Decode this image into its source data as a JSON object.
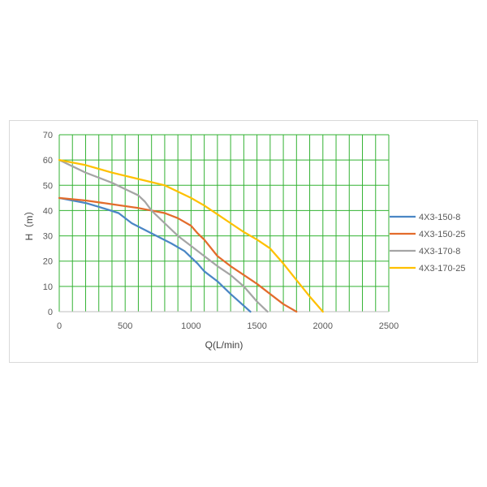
{
  "chart_data": {
    "type": "line",
    "xlabel": "Q(L/min)",
    "ylabel": "H（m）",
    "xlim": [
      0,
      2500
    ],
    "ylim": [
      0,
      70
    ],
    "x_ticks": [
      0,
      500,
      1000,
      1500,
      2000,
      2500
    ],
    "y_ticks": [
      0,
      10,
      20,
      30,
      40,
      50,
      60,
      70
    ],
    "x_minor_step": 100,
    "grid": true,
    "grid_color": "#33b233",
    "legend_position": "right",
    "series": [
      {
        "name": "4X3-150-8",
        "color": "#4a86c5",
        "x": [
          0,
          200,
          300,
          450,
          550,
          700,
          850,
          950,
          1050,
          1100,
          1200,
          1300,
          1450
        ],
        "y": [
          45,
          43,
          41.5,
          39,
          35,
          31,
          27,
          24,
          19,
          16,
          12,
          7,
          0
        ]
      },
      {
        "name": "4X3-150-25",
        "color": "#e36c2c",
        "x": [
          0,
          200,
          400,
          600,
          800,
          900,
          1000,
          1050,
          1100,
          1200,
          1300,
          1400,
          1500,
          1600,
          1700,
          1800
        ],
        "y": [
          45,
          44,
          42.5,
          41,
          39,
          37,
          34,
          31,
          28.5,
          22,
          18,
          14.5,
          11,
          7,
          3,
          0
        ]
      },
      {
        "name": "4X3-170-8",
        "color": "#a5a5a5",
        "x": [
          0,
          200,
          400,
          500,
          600,
          650,
          700,
          800,
          900,
          1000,
          1100,
          1200,
          1300,
          1400,
          1500,
          1580
        ],
        "y": [
          60,
          55,
          51,
          48.5,
          46,
          43.5,
          40,
          35,
          30,
          26,
          22,
          18,
          14.5,
          10,
          4,
          0
        ]
      },
      {
        "name": "4X3-170-25",
        "color": "#ffc000",
        "x": [
          0,
          200,
          400,
          600,
          800,
          900,
          1000,
          1100,
          1200,
          1300,
          1400,
          1500,
          1600,
          1700,
          1800,
          1900,
          2000
        ],
        "y": [
          60,
          58,
          55,
          52.5,
          50,
          47.5,
          45,
          42,
          38.5,
          35,
          31.5,
          28.5,
          25,
          19,
          12.5,
          6,
          0
        ]
      }
    ]
  }
}
